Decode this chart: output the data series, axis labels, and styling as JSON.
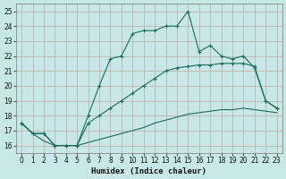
{
  "xlabel": "Humidex (Indice chaleur)",
  "xlim": [
    -0.5,
    23.5
  ],
  "ylim": [
    15.5,
    25.5
  ],
  "yticks": [
    16,
    17,
    18,
    19,
    20,
    21,
    22,
    23,
    24,
    25
  ],
  "xticks": [
    0,
    1,
    2,
    3,
    4,
    5,
    6,
    7,
    8,
    9,
    10,
    11,
    12,
    13,
    14,
    15,
    16,
    17,
    18,
    19,
    20,
    21,
    22,
    23
  ],
  "bg_color": "#c8e8e8",
  "grid_color": "#c0a8a8",
  "line_color": "#1a6b5a",
  "line1_x": [
    0,
    1,
    2,
    3,
    4,
    5,
    6,
    7,
    8,
    9,
    10,
    11,
    12,
    13,
    14,
    15,
    16,
    17,
    18,
    19,
    20,
    21,
    22,
    23
  ],
  "line1_y": [
    17.5,
    16.8,
    16.8,
    16.0,
    16.0,
    16.0,
    18.0,
    20.0,
    21.8,
    22.0,
    23.5,
    23.7,
    23.7,
    24.0,
    24.0,
    25.0,
    22.3,
    22.7,
    22.0,
    21.8,
    22.0,
    21.2,
    19.0,
    18.5
  ],
  "line2_x": [
    0,
    1,
    2,
    3,
    4,
    5,
    6,
    7,
    8,
    9,
    10,
    11,
    12,
    13,
    14,
    15,
    16,
    17,
    18,
    19,
    20,
    21,
    22,
    23
  ],
  "line2_y": [
    17.5,
    16.8,
    16.8,
    16.0,
    16.0,
    16.0,
    17.5,
    18.0,
    18.5,
    19.0,
    19.5,
    20.0,
    20.5,
    21.0,
    21.2,
    21.3,
    21.4,
    21.4,
    21.5,
    21.5,
    21.5,
    21.3,
    19.0,
    18.5
  ],
  "line3_x": [
    0,
    1,
    2,
    3,
    4,
    5,
    6,
    7,
    8,
    9,
    10,
    11,
    12,
    13,
    14,
    15,
    16,
    17,
    18,
    19,
    20,
    21,
    22,
    23
  ],
  "line3_y": [
    17.5,
    16.8,
    16.3,
    16.0,
    16.0,
    16.0,
    16.2,
    16.4,
    16.6,
    16.8,
    17.0,
    17.2,
    17.5,
    17.7,
    17.9,
    18.1,
    18.2,
    18.3,
    18.4,
    18.4,
    18.5,
    18.4,
    18.3,
    18.2
  ],
  "xlabel_fontsize": 6.5,
  "tick_fontsize": 5.5,
  "line_width": 0.8,
  "marker_size": 3.0,
  "marker_ew": 0.8
}
